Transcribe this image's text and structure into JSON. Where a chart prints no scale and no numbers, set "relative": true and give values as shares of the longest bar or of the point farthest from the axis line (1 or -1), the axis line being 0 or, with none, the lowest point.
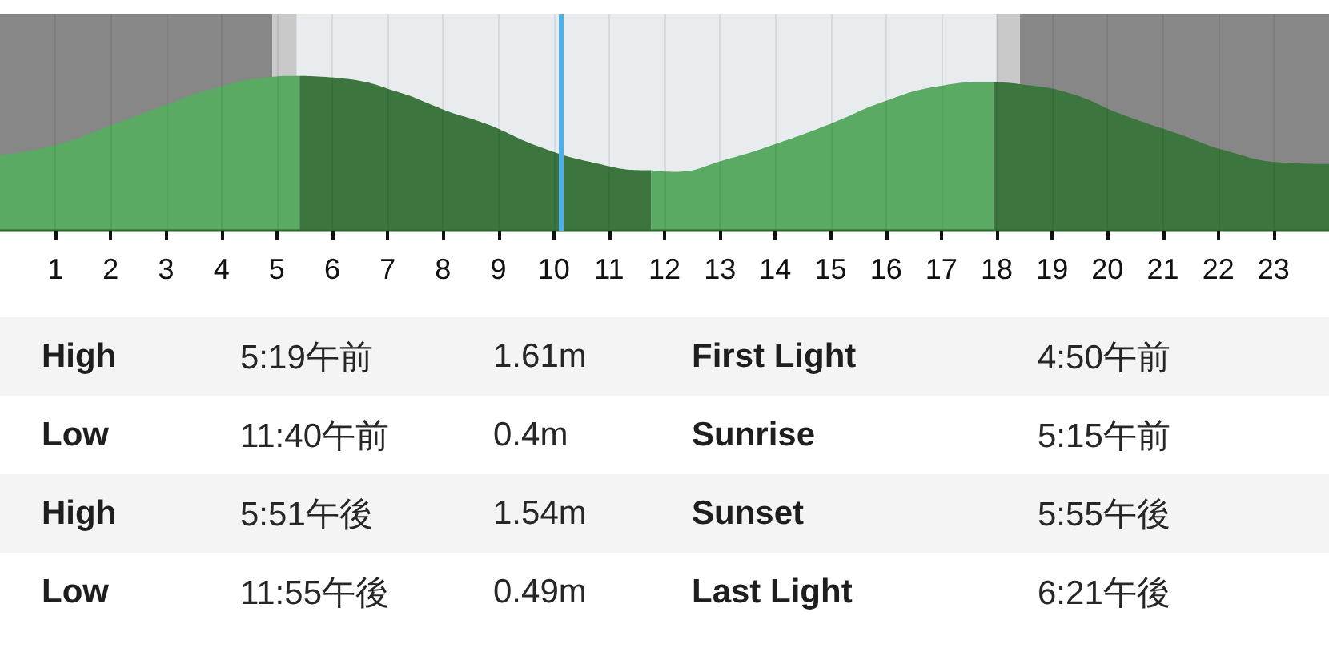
{
  "chart_data": [
    {
      "type": "area",
      "relative": true,
      "xlim": [
        0,
        24
      ],
      "xticks": [
        1,
        2,
        3,
        4,
        5,
        6,
        7,
        8,
        9,
        10,
        11,
        12,
        13,
        14,
        15,
        16,
        17,
        18,
        19,
        20,
        21,
        22,
        23
      ],
      "grid": "x",
      "tick_labels": "x",
      "series": [
        {
          "color": "#5aaa64",
          "x": [
            0,
            0.97,
            1.93,
            2.9,
            3.86,
            4.83,
            5.3,
            5.41
          ],
          "values": [
            0.49,
            0.55,
            0.67,
            0.8,
            0.92,
            0.99,
            1.0,
            1.0
          ]
        },
        {
          "color": "#3c763e",
          "x": [
            5.41,
            6.27,
            7.24,
            7.82,
            8.1,
            8.78,
            9.75,
            10.71,
            11.68,
            11.76
          ],
          "values": [
            1.0,
            0.98,
            0.89,
            0.81,
            0.77,
            0.69,
            0.54,
            0.44,
            0.39,
            0.39
          ]
        },
        {
          "color": "#5aaa64",
          "x": [
            11.76,
            12.16,
            13.12,
            14.09,
            15.06,
            15.93,
            16.89,
            17.86,
            17.94
          ],
          "values": [
            0.39,
            0.38,
            0.46,
            0.57,
            0.7,
            0.83,
            0.93,
            0.96,
            0.96
          ]
        },
        {
          "color": "#3c763e",
          "x": [
            17.94,
            18.34,
            19.3,
            20.27,
            21.24,
            22.2,
            23.17,
            24
          ],
          "values": [
            0.96,
            0.95,
            0.89,
            0.75,
            0.63,
            0.51,
            0.44,
            0.43
          ]
        }
      ],
      "bands": [
        {
          "axis": "x",
          "from": 0,
          "to": 4.92,
          "color": "#878787"
        },
        {
          "axis": "x",
          "from": 4.92,
          "to": 5.36,
          "color": "#c9c9c9"
        },
        {
          "axis": "x",
          "from": 5.36,
          "to": 18.0,
          "color": "#e9ecee"
        },
        {
          "axis": "x",
          "from": 18.0,
          "to": 18.42,
          "color": "#c9c9c9"
        },
        {
          "axis": "x",
          "from": 18.42,
          "to": 24,
          "color": "#878787"
        }
      ],
      "ref_lines": [
        {
          "axis": "x",
          "value": 10.12,
          "color": "#4eb0ea"
        }
      ]
    },
    {
      "type": "other",
      "annotations": [
        "High",
        "5:19午前",
        "1.61m",
        "First Light",
        "4:50午前",
        "Low",
        "11:40午前",
        "0.4m",
        "Sunrise",
        "5:15午前",
        "High",
        "5:51午後",
        "1.54m",
        "Sunset",
        "5:55午後",
        "Low",
        "11:55午後",
        "0.49m",
        "Last Light",
        "6:21午後"
      ]
    }
  ]
}
